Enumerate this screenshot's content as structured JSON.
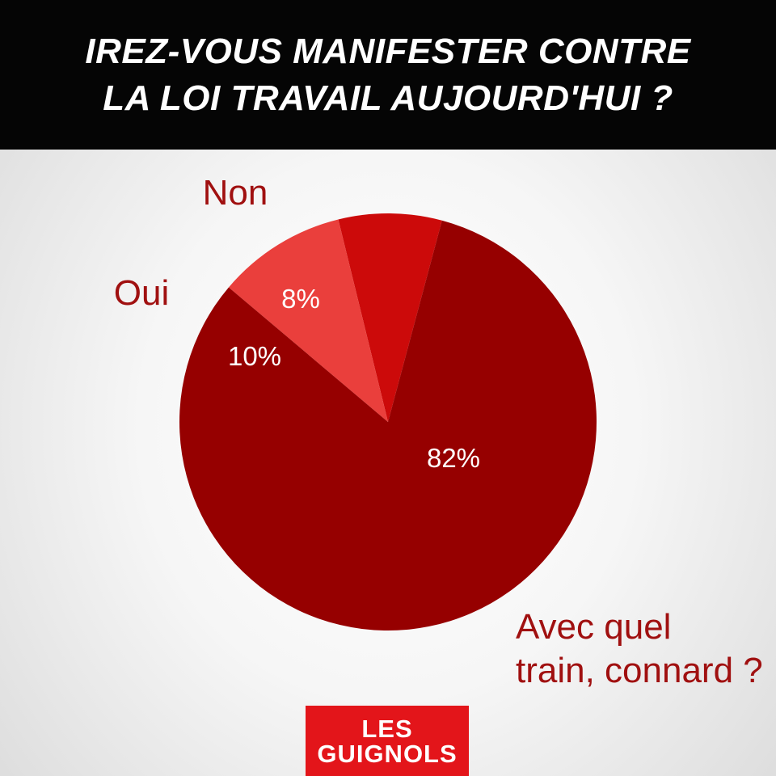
{
  "header": {
    "line1": "IREZ-VOUS MANIFESTER CONTRE",
    "line2": "LA LOI TRAVAIL AUJOURD'HUI ?"
  },
  "chart_data": {
    "type": "pie",
    "title": "IREZ-VOUS MANIFESTER CONTRE LA LOI TRAVAIL AUJOURD'HUI ?",
    "slices": [
      {
        "label": "Non",
        "value": 8,
        "value_label": "8%",
        "color": "#cc0a0a"
      },
      {
        "label": "Oui",
        "value": 10,
        "value_label": "10%",
        "color": "#ea3f3c"
      },
      {
        "label": "Avec quel train, connard ?",
        "label_lines": [
          "Avec quel",
          "train, connard ?"
        ],
        "value": 82,
        "value_label": "82%",
        "color": "#960000"
      }
    ],
    "legend": "none",
    "colors": {
      "category_label": "#a01010",
      "value_label": "#ffffff"
    }
  },
  "logo": {
    "line1": "LES",
    "line2": "GUIGNOLS",
    "color": "#e3151a"
  }
}
